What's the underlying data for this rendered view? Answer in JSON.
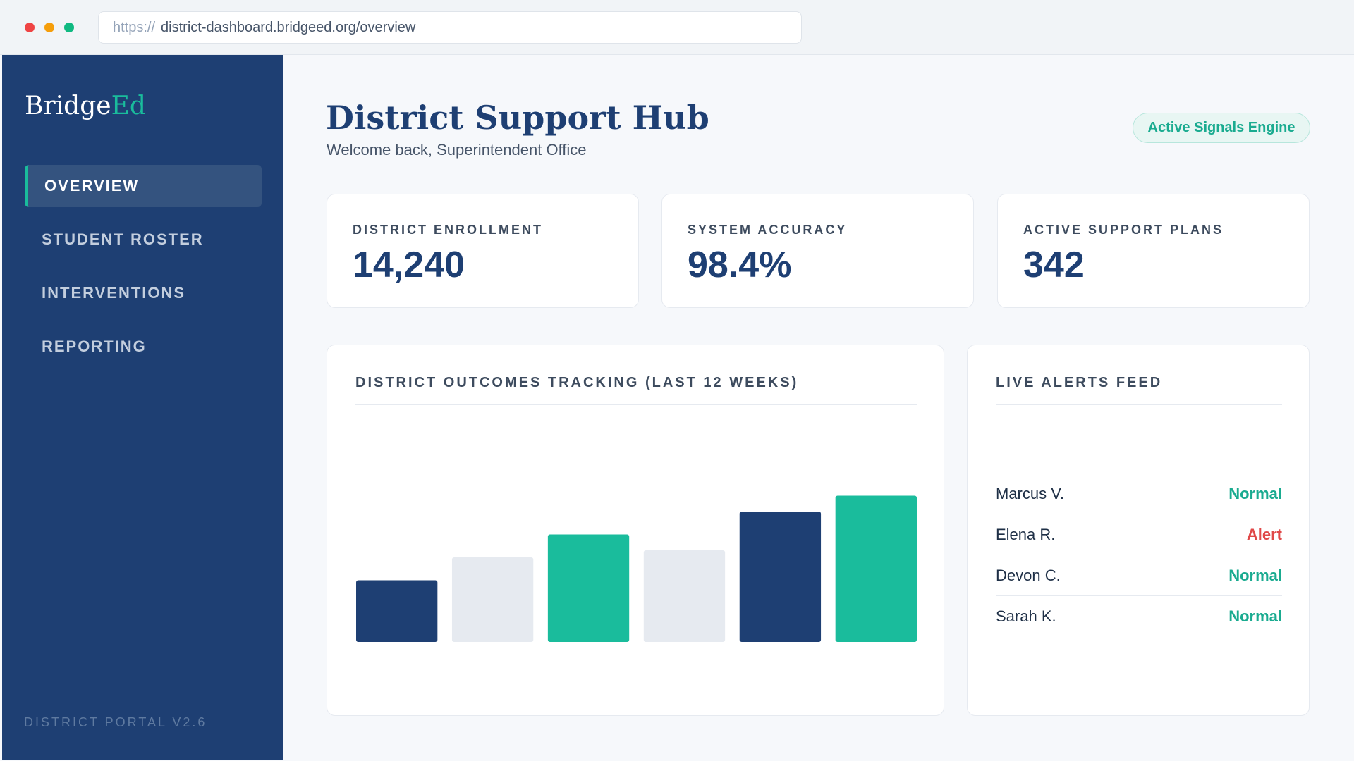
{
  "browser": {
    "protocol": "https://",
    "url": "district-dashboard.bridgeed.org/overview"
  },
  "sidebar": {
    "logo_part1": "Bridge",
    "logo_part2": "Ed",
    "items": [
      {
        "label": "OVERVIEW",
        "active": true
      },
      {
        "label": "STUDENT ROSTER",
        "active": false
      },
      {
        "label": "INTERVENTIONS",
        "active": false
      },
      {
        "label": "REPORTING",
        "active": false
      }
    ],
    "version": "DISTRICT PORTAL V2.6"
  },
  "header": {
    "title": "District Support Hub",
    "subtitle": "Welcome back, Superintendent Office",
    "badge": "Active Signals Engine"
  },
  "stats": [
    {
      "label": "DISTRICT ENROLLMENT",
      "value": "14,240"
    },
    {
      "label": "SYSTEM ACCURACY",
      "value": "98.4%"
    },
    {
      "label": "ACTIVE SUPPORT PLANS",
      "value": "342"
    }
  ],
  "chart_panel": {
    "title": "DISTRICT OUTCOMES TRACKING (LAST 12 WEEKS)"
  },
  "chart_data": {
    "type": "bar",
    "values": [
      35,
      48,
      61,
      52,
      74,
      83
    ],
    "ylim": [
      0,
      100
    ],
    "bar_colors": [
      "#1e3f73",
      "#e6eaf0",
      "#1abc9c",
      "#e6eaf0",
      "#1e3f73",
      "#1abc9c"
    ]
  },
  "alerts_panel": {
    "title": "LIVE ALERTS FEED",
    "items": [
      {
        "name": "Marcus V.",
        "status": "Normal",
        "color": "#1aab90"
      },
      {
        "name": "Elena R.",
        "status": "Alert",
        "color": "#e04848"
      },
      {
        "name": "Devon C.",
        "status": "Normal",
        "color": "#1aab90"
      },
      {
        "name": "Sarah K.",
        "status": "Normal",
        "color": "#1aab90"
      }
    ]
  }
}
